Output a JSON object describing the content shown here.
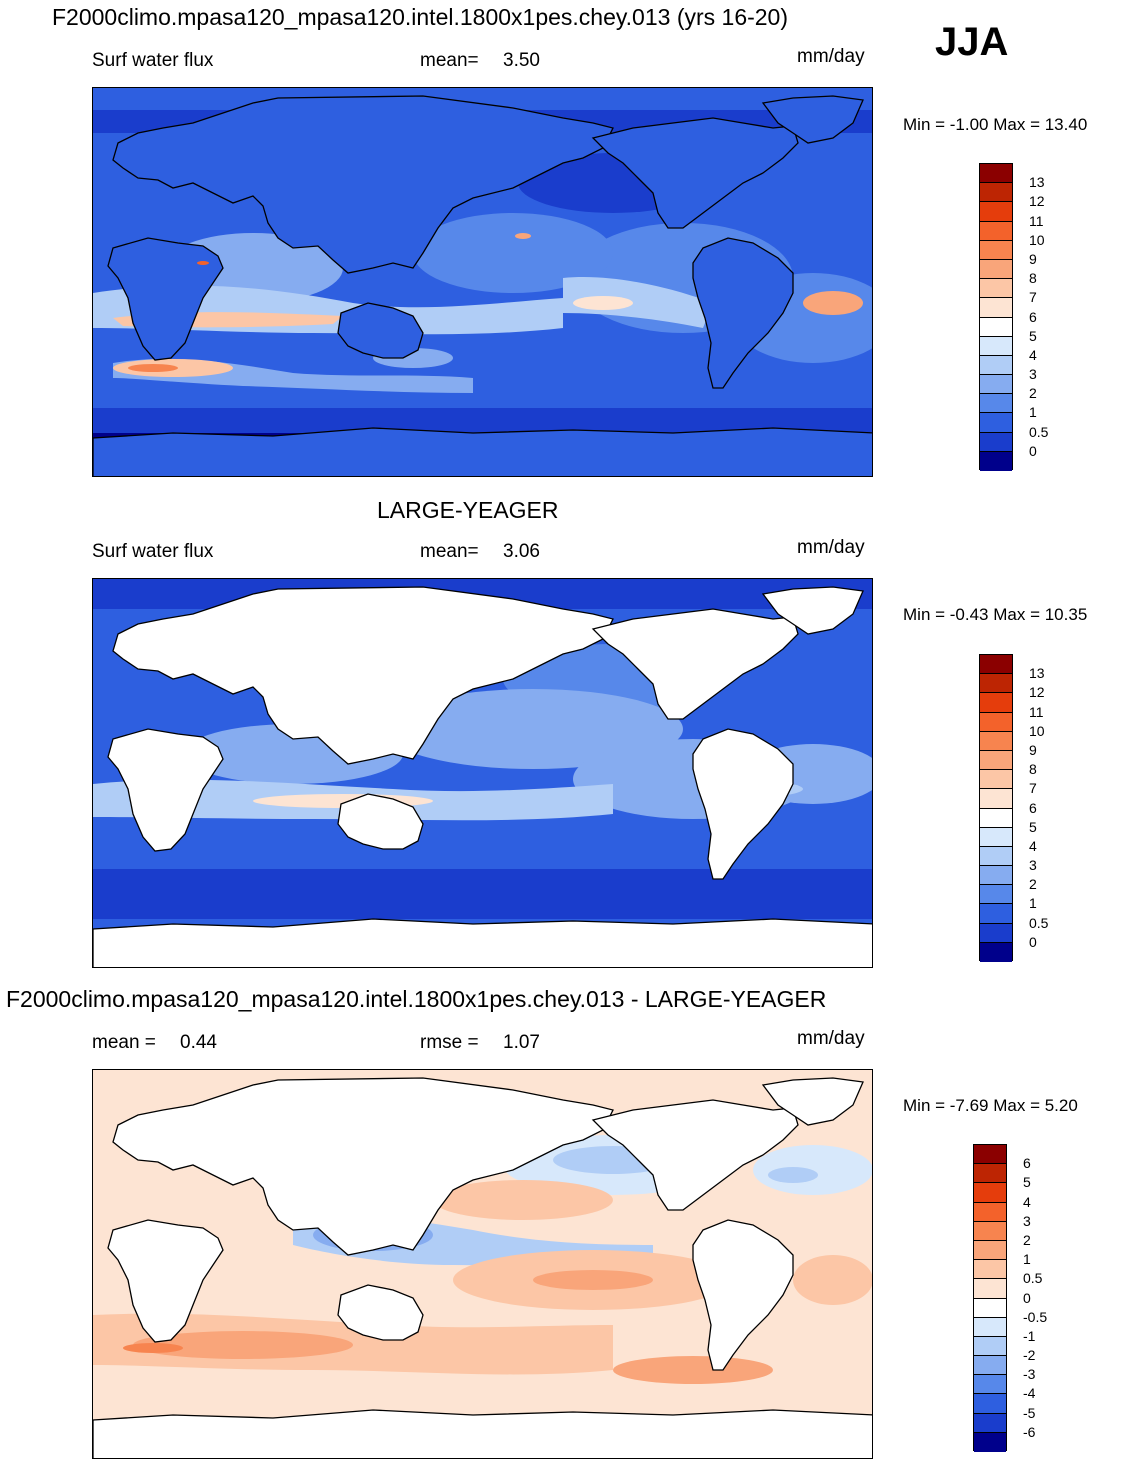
{
  "season": "JJA",
  "panels": [
    {
      "title": "F2000climo.mpasa120_mpasa120.intel.1800x1pes.chey.013 (yrs 16-20)",
      "left_label": "Surf water flux",
      "stat_label": "mean=",
      "stat_value": "3.50",
      "units": "mm/day",
      "min_max": "Min =  -1.00 Max =  13.40"
    },
    {
      "title": "LARGE-YEAGER",
      "left_label": "Surf water flux",
      "stat_label": "mean=",
      "stat_value": "3.06",
      "units": "mm/day",
      "min_max": "Min =  -0.43 Max =  10.35"
    },
    {
      "title": "F2000climo.mpasa120_mpasa120.intel.1800x1pes.chey.013 - LARGE-YEAGER",
      "left_label": "mean =",
      "left_value": "0.44",
      "stat_label": "rmse =",
      "stat_value": "1.07",
      "units": "mm/day",
      "min_max": "Min =  -7.69 Max =   5.20"
    }
  ],
  "colorbars": {
    "absolute": {
      "levels": [
        "13",
        "12",
        "11",
        "10",
        "9",
        "8",
        "7",
        "6",
        "5",
        "4",
        "3",
        "2",
        "1",
        "0.5",
        "0"
      ],
      "colors": [
        "#8b0000",
        "#bd2503",
        "#e53d0c",
        "#f3622b",
        "#f7844f",
        "#f9a57a",
        "#fcc6a6",
        "#fde4d3",
        "#ffffff",
        "#d7e8fb",
        "#b0cdf6",
        "#86acf0",
        "#5788ea",
        "#2e5fe0",
        "#1a3dcc",
        "#00008b"
      ]
    },
    "difference": {
      "levels": [
        "6",
        "5",
        "4",
        "3",
        "2",
        "1",
        "0.5",
        "0",
        "-0.5",
        "-1",
        "-2",
        "-3",
        "-4",
        "-5",
        "-6"
      ],
      "colors": [
        "#8b0000",
        "#bd2503",
        "#e53d0c",
        "#f3622b",
        "#f7844f",
        "#f9a57a",
        "#fcc6a6",
        "#fde4d3",
        "#ffffff",
        "#d7e8fb",
        "#b0cdf6",
        "#86acf0",
        "#5788ea",
        "#2e5fe0",
        "#1a3dcc",
        "#00008b"
      ]
    }
  },
  "chart_data": [
    {
      "type": "heatmap",
      "title": "F2000climo.mpasa120_mpasa120.intel.1800x1pes.chey.013 (yrs 16-20)",
      "subtitle": "Surf water flux",
      "units": "mm/day",
      "mean": 3.5,
      "min": -1.0,
      "max": 13.4,
      "contour_levels": [
        0,
        0.5,
        1,
        2,
        3,
        4,
        5,
        6,
        7,
        8,
        9,
        10,
        11,
        12,
        13
      ]
    },
    {
      "type": "heatmap",
      "title": "LARGE-YEAGER",
      "subtitle": "Surf water flux",
      "units": "mm/day",
      "mean": 3.06,
      "min": -0.43,
      "max": 10.35,
      "contour_levels": [
        0,
        0.5,
        1,
        2,
        3,
        4,
        5,
        6,
        7,
        8,
        9,
        10,
        11,
        12,
        13
      ]
    },
    {
      "type": "heatmap",
      "title": "F2000climo.mpasa120_mpasa120.intel.1800x1pes.chey.013 - LARGE-YEAGER",
      "units": "mm/day",
      "mean": 0.44,
      "rmse": 1.07,
      "min": -7.69,
      "max": 5.2,
      "contour_levels": [
        -6,
        -5,
        -4,
        -3,
        -2,
        -1,
        -0.5,
        0,
        0.5,
        1,
        2,
        3,
        4,
        5,
        6
      ]
    }
  ]
}
